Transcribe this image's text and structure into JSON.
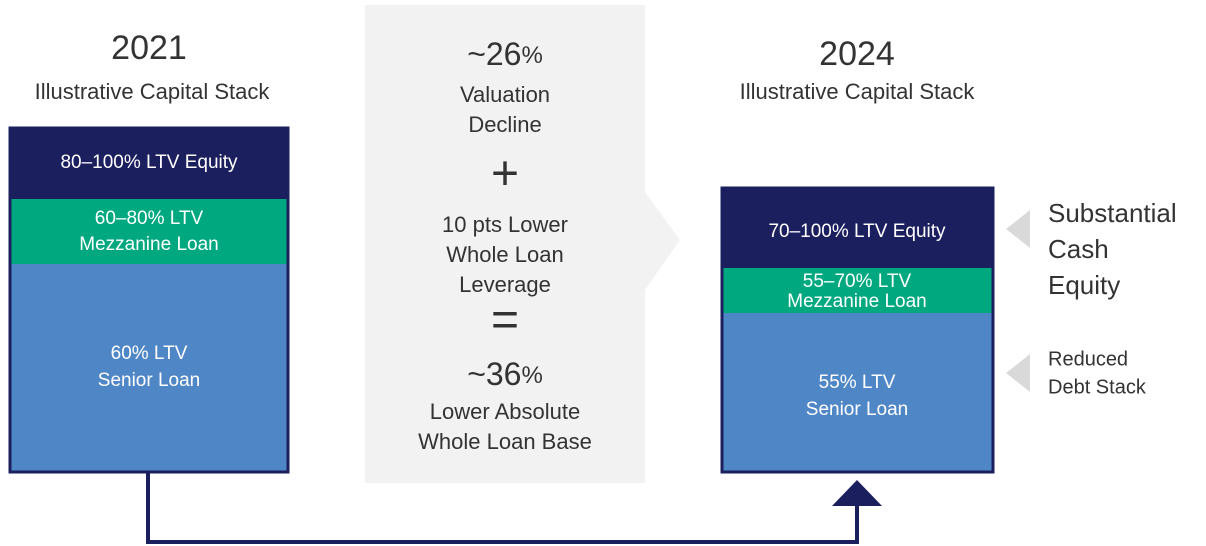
{
  "left": {
    "year": "2021",
    "subtitle": "Illustrative Capital Stack",
    "layers": [
      {
        "lines": [
          "80–100% LTV Equity"
        ]
      },
      {
        "lines": [
          "60–80% LTV",
          "Mezzanine Loan"
        ]
      },
      {
        "lines": [
          "60% LTV",
          "Senior Loan"
        ]
      }
    ]
  },
  "middle": {
    "first": {
      "value": "~26",
      "unit": "%"
    },
    "first_lines": [
      "Valuation",
      "Decline"
    ],
    "plus": "+",
    "second_lines": [
      "10 pts Lower",
      "Whole Loan",
      "Leverage"
    ],
    "equals": "=",
    "result": {
      "value": "~36",
      "unit": "%"
    },
    "result_lines": [
      "Lower Absolute",
      "Whole Loan Base"
    ]
  },
  "right": {
    "year": "2024",
    "subtitle": "Illustrative Capital Stack",
    "layers": [
      {
        "lines": [
          "70–100% LTV Equity"
        ]
      },
      {
        "lines": [
          "55–70% LTV",
          "Mezzanine Loan"
        ]
      },
      {
        "lines": [
          "55% LTV",
          "Senior Loan"
        ]
      }
    ]
  },
  "annotations": [
    {
      "lines": [
        "Substantial",
        "Cash",
        "Equity"
      ]
    },
    {
      "lines": [
        "Reduced",
        "Debt Stack"
      ]
    }
  ]
}
